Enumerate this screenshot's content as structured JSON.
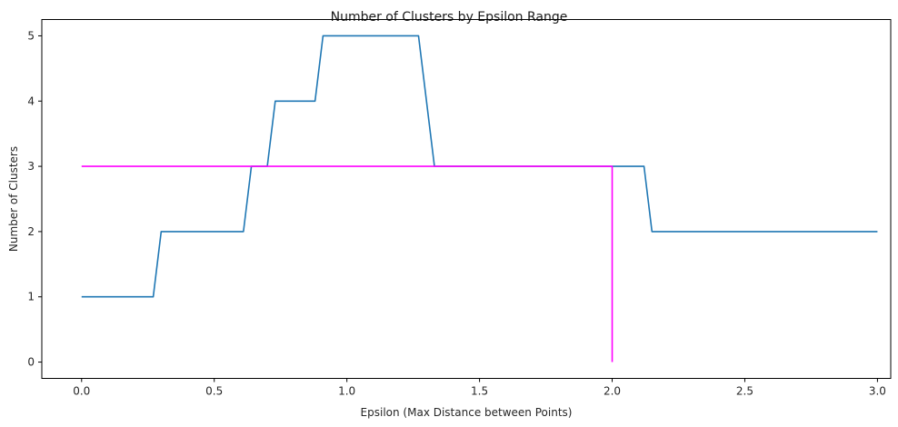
{
  "chart_data": {
    "type": "line",
    "title": "Number of Clusters by Epsilon Range",
    "xlabel": "Epsilon (Max Distance between Points)",
    "ylabel": "Number of Clusters",
    "xlim": [
      -0.15,
      3.05
    ],
    "ylim": [
      -0.25,
      5.25
    ],
    "xticks": [
      0.0,
      0.5,
      1.0,
      1.5,
      2.0,
      2.5,
      3.0
    ],
    "xtick_labels": [
      "0.0",
      "0.5",
      "1.0",
      "1.5",
      "2.0",
      "2.5",
      "3.0"
    ],
    "yticks": [
      0,
      1,
      2,
      3,
      4,
      5
    ],
    "ytick_labels": [
      "0",
      "1",
      "2",
      "3",
      "4",
      "5"
    ],
    "grid": false,
    "series": [
      {
        "color": "#1f77b4",
        "x": [
          0.0,
          0.27,
          0.3,
          0.61,
          0.64,
          0.7,
          0.73,
          0.88,
          0.91,
          1.27,
          1.33,
          2.12,
          2.15,
          3.0
        ],
        "y": [
          1,
          1,
          2,
          2,
          3,
          3,
          4,
          4,
          5,
          5,
          3,
          3,
          2,
          2
        ]
      },
      {
        "color": "#ff00ff",
        "x": [
          0.0,
          2.0,
          2.0
        ],
        "y": [
          3,
          3,
          0
        ]
      }
    ]
  }
}
